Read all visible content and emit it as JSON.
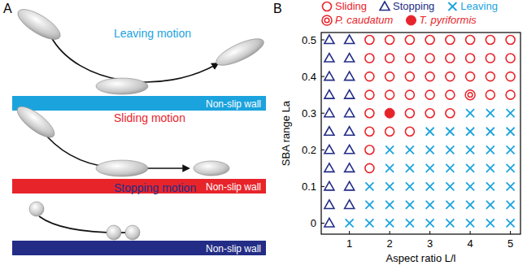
{
  "panel_labels": [
    "A",
    "B"
  ],
  "diagram": {
    "scenes": [
      {
        "label": "Leaving motion",
        "wall": "Non-slip wall",
        "color": "#1ba3de"
      },
      {
        "label": "Sliding motion",
        "wall": "Non-slip wall",
        "color": "#e8242b"
      },
      {
        "label": "Stopping motion",
        "wall": "Non-slip wall",
        "color": "#232d86"
      }
    ]
  },
  "chart_data": {
    "type": "scatter",
    "x_label": "Aspect ratio L/l",
    "y_label": "SBA range La",
    "xlim": [
      0.3,
      5.25
    ],
    "ylim": [
      -0.03,
      0.52
    ],
    "xticks": [
      1,
      2,
      3,
      4,
      5
    ],
    "yticks": [
      0,
      0.1,
      0.2,
      0.3,
      0.4,
      0.5
    ],
    "legend": "top",
    "series": [
      {
        "name": "Sliding",
        "color": "#e8242b",
        "marker": "circle",
        "x": [
          1.5,
          2,
          2.5,
          3,
          3.5,
          4,
          4.5,
          5,
          1.5,
          2,
          2.5,
          3,
          3.5,
          4,
          4.5,
          5,
          1.5,
          2,
          2.5,
          3,
          3.5,
          4,
          4.5,
          5,
          1.5,
          2,
          2.5,
          3,
          3.5,
          4.5,
          5,
          1.5,
          2.5,
          3,
          3.5,
          1.5,
          2,
          2.5,
          1.5,
          1.5
        ],
        "y": [
          0.5,
          0.5,
          0.5,
          0.5,
          0.5,
          0.5,
          0.5,
          0.5,
          0.45,
          0.45,
          0.45,
          0.45,
          0.45,
          0.45,
          0.45,
          0.45,
          0.4,
          0.4,
          0.4,
          0.4,
          0.4,
          0.4,
          0.4,
          0.4,
          0.35,
          0.35,
          0.35,
          0.35,
          0.35,
          0.35,
          0.35,
          0.3,
          0.3,
          0.3,
          0.3,
          0.25,
          0.25,
          0.25,
          0.2,
          0.15
        ]
      },
      {
        "name": "Stopping",
        "color": "#232d86",
        "marker": "triangle",
        "x": [
          0.5,
          0.5,
          0.5,
          0.5,
          0.5,
          0.5,
          0.5,
          0.5,
          0.5,
          0.5,
          0.5,
          1,
          1,
          1,
          1,
          1,
          1,
          1,
          1,
          1,
          1
        ],
        "y": [
          0,
          0.05,
          0.1,
          0.15,
          0.2,
          0.25,
          0.3,
          0.35,
          0.4,
          0.45,
          0.5,
          0.05,
          0.1,
          0.15,
          0.2,
          0.25,
          0.3,
          0.35,
          0.4,
          0.45,
          0.5
        ]
      },
      {
        "name": "Leaving",
        "color": "#1ba3de",
        "marker": "cross",
        "x": [
          4,
          4.5,
          5,
          3,
          3.5,
          4,
          4.5,
          5,
          2,
          2.5,
          3,
          3.5,
          4,
          4.5,
          5,
          2,
          2.5,
          3,
          3.5,
          4,
          4.5,
          5,
          1.5,
          2,
          2.5,
          3,
          3.5,
          4,
          4.5,
          5,
          1.5,
          2,
          2.5,
          3,
          3.5,
          4,
          4.5,
          5,
          1,
          1.5,
          2,
          2.5,
          3,
          3.5,
          4,
          4.5,
          5
        ],
        "y": [
          0.3,
          0.3,
          0.3,
          0.25,
          0.25,
          0.25,
          0.25,
          0.25,
          0.2,
          0.2,
          0.2,
          0.2,
          0.2,
          0.2,
          0.2,
          0.15,
          0.15,
          0.15,
          0.15,
          0.15,
          0.15,
          0.15,
          0.1,
          0.1,
          0.1,
          0.1,
          0.1,
          0.1,
          0.1,
          0.1,
          0.05,
          0.05,
          0.05,
          0.05,
          0.05,
          0.05,
          0.05,
          0.05,
          0,
          0,
          0,
          0,
          0,
          0,
          0,
          0,
          0
        ]
      },
      {
        "name": "P. caudatum",
        "color": "#e8242b",
        "marker": "double-circle",
        "x": [
          4
        ],
        "y": [
          0.35
        ]
      },
      {
        "name": "T. pyriformis",
        "color": "#e8242b",
        "marker": "filled-circle",
        "x": [
          2
        ],
        "y": [
          0.3
        ]
      }
    ]
  }
}
